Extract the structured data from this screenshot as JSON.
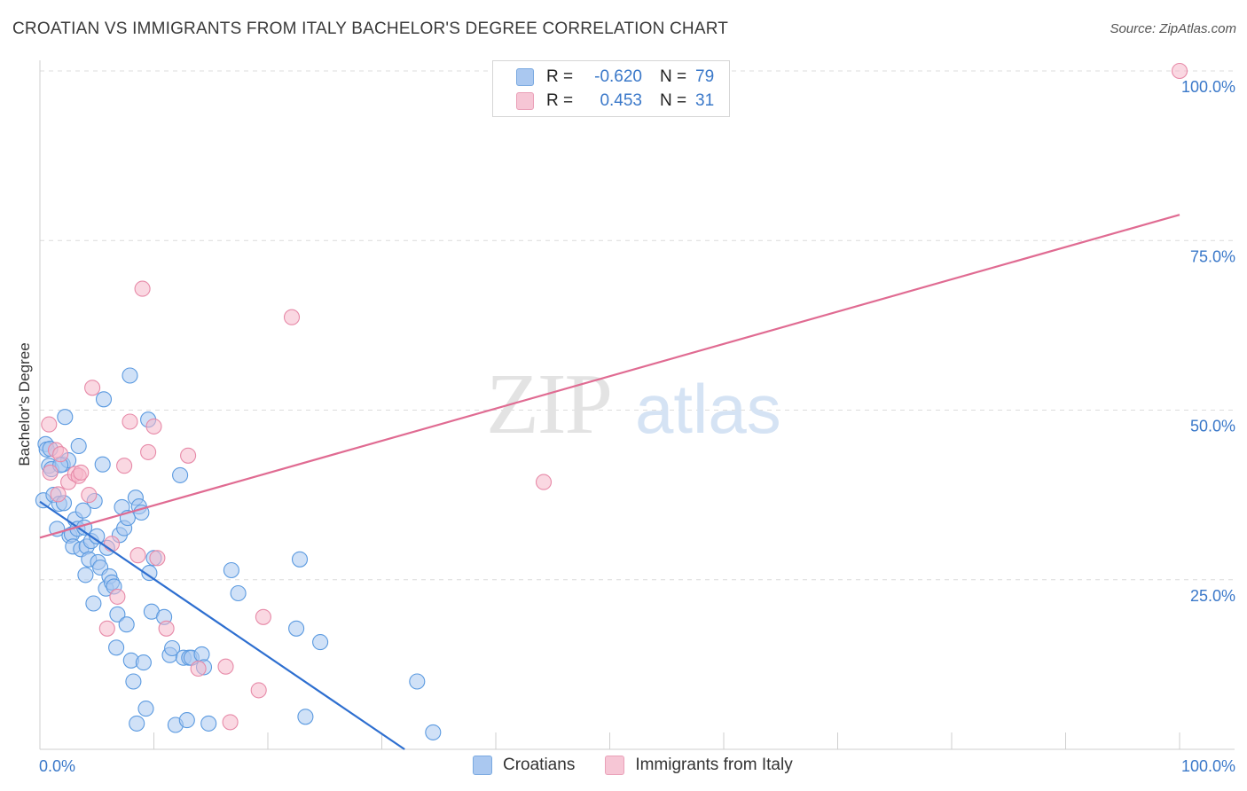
{
  "title": "CROATIAN VS IMMIGRANTS FROM ITALY BACHELOR'S DEGREE CORRELATION CHART",
  "source": "Source: ZipAtlas.com",
  "watermark": {
    "zip": "ZIP",
    "atlas": "atlas"
  },
  "legend": {
    "rows": [
      {
        "r_label": "R =",
        "r_value": "-0.620",
        "n_label": "N =",
        "n_value": "79",
        "color": "#aac8f0"
      },
      {
        "r_label": "R =",
        "r_value": "0.453",
        "n_label": "N =",
        "n_value": "31",
        "color": "#f6b8cb"
      }
    ]
  },
  "bottom_legend": [
    {
      "label": "Croatians",
      "color": "#aac8f0"
    },
    {
      "label": "Immigrants from Italy",
      "color": "#f6b8cb"
    }
  ],
  "chart_data": {
    "type": "scatter",
    "title": "CROATIAN VS IMMIGRANTS FROM ITALY BACHELOR'S DEGREE CORRELATION CHART",
    "xlabel": "",
    "ylabel": "Bachelor's Degree",
    "xlim": [
      0,
      100
    ],
    "ylim": [
      0,
      100
    ],
    "x_tick_labels": [
      "0.0%",
      "100.0%"
    ],
    "y_tick_labels": [
      "25.0%",
      "50.0%",
      "75.0%",
      "100.0%"
    ],
    "y_ticks": [
      25,
      50,
      75,
      100
    ],
    "series": [
      {
        "name": "Croatians",
        "color": "#5b9ae0",
        "fill": "#aac8f0",
        "trend": {
          "x0": 0,
          "y0": 36.5,
          "x1": 32,
          "y1": 0
        },
        "points": [
          [
            0.3,
            36.7
          ],
          [
            0.5,
            45.0
          ],
          [
            0.6,
            44.2
          ],
          [
            0.8,
            41.8
          ],
          [
            1.0,
            41.3
          ],
          [
            1.2,
            37.5
          ],
          [
            1.5,
            32.5
          ],
          [
            1.7,
            36.2
          ],
          [
            2.0,
            42.0
          ],
          [
            2.1,
            36.3
          ],
          [
            2.2,
            49.0
          ],
          [
            2.5,
            42.6
          ],
          [
            2.6,
            31.5
          ],
          [
            2.8,
            31.7
          ],
          [
            2.9,
            29.9
          ],
          [
            3.1,
            33.9
          ],
          [
            3.3,
            32.5
          ],
          [
            3.4,
            44.7
          ],
          [
            3.6,
            29.5
          ],
          [
            3.8,
            35.2
          ],
          [
            3.9,
            32.7
          ],
          [
            4.0,
            25.7
          ],
          [
            4.1,
            29.9
          ],
          [
            4.3,
            28.0
          ],
          [
            4.5,
            30.7
          ],
          [
            4.7,
            21.5
          ],
          [
            4.8,
            36.6
          ],
          [
            5.0,
            31.4
          ],
          [
            5.1,
            27.6
          ],
          [
            5.3,
            26.8
          ],
          [
            5.5,
            42.0
          ],
          [
            5.6,
            51.6
          ],
          [
            5.8,
            23.7
          ],
          [
            5.9,
            29.7
          ],
          [
            6.1,
            25.5
          ],
          [
            6.3,
            24.6
          ],
          [
            6.5,
            24.0
          ],
          [
            6.7,
            15.0
          ],
          [
            6.8,
            19.9
          ],
          [
            7.0,
            31.6
          ],
          [
            7.2,
            35.7
          ],
          [
            7.4,
            32.6
          ],
          [
            7.6,
            18.4
          ],
          [
            7.7,
            34.1
          ],
          [
            7.9,
            55.1
          ],
          [
            8.0,
            13.1
          ],
          [
            8.2,
            10.0
          ],
          [
            8.4,
            37.1
          ],
          [
            8.5,
            3.8
          ],
          [
            8.7,
            35.8
          ],
          [
            8.9,
            34.9
          ],
          [
            9.1,
            12.8
          ],
          [
            9.3,
            6.0
          ],
          [
            9.5,
            48.6
          ],
          [
            9.6,
            26.0
          ],
          [
            9.8,
            20.3
          ],
          [
            10.0,
            28.2
          ],
          [
            10.9,
            19.5
          ],
          [
            11.4,
            13.9
          ],
          [
            11.6,
            14.9
          ],
          [
            11.9,
            3.6
          ],
          [
            12.3,
            40.4
          ],
          [
            12.6,
            13.5
          ],
          [
            12.9,
            4.3
          ],
          [
            13.1,
            13.5
          ],
          [
            13.3,
            13.5
          ],
          [
            14.2,
            14.0
          ],
          [
            14.4,
            12.1
          ],
          [
            14.8,
            3.8
          ],
          [
            16.8,
            26.4
          ],
          [
            17.4,
            23.0
          ],
          [
            22.5,
            17.8
          ],
          [
            22.8,
            28.0
          ],
          [
            23.3,
            4.8
          ],
          [
            24.6,
            15.8
          ],
          [
            33.1,
            10.0
          ],
          [
            34.5,
            2.5
          ],
          [
            0.9,
            44.3
          ],
          [
            1.8,
            41.9
          ]
        ]
      },
      {
        "name": "Immigrants from Italy",
        "color": "#e78aa8",
        "fill": "#f6b8cb",
        "trend": {
          "x0": 0,
          "y0": 31.2,
          "x1": 100,
          "y1": 78.8
        },
        "points": [
          [
            0.8,
            47.9
          ],
          [
            0.9,
            40.8
          ],
          [
            1.4,
            44.1
          ],
          [
            1.6,
            37.6
          ],
          [
            1.8,
            43.5
          ],
          [
            2.5,
            39.4
          ],
          [
            3.1,
            40.6
          ],
          [
            3.4,
            40.3
          ],
          [
            3.6,
            40.8
          ],
          [
            4.3,
            37.5
          ],
          [
            4.6,
            53.3
          ],
          [
            5.9,
            17.8
          ],
          [
            6.3,
            30.3
          ],
          [
            6.8,
            22.5
          ],
          [
            7.4,
            41.8
          ],
          [
            7.9,
            48.3
          ],
          [
            8.6,
            28.6
          ],
          [
            9.0,
            67.9
          ],
          [
            9.5,
            43.8
          ],
          [
            10.0,
            47.6
          ],
          [
            10.3,
            28.2
          ],
          [
            11.1,
            17.8
          ],
          [
            13.0,
            43.3
          ],
          [
            13.9,
            11.9
          ],
          [
            16.3,
            12.2
          ],
          [
            16.7,
            4.0
          ],
          [
            19.2,
            8.7
          ],
          [
            19.6,
            19.5
          ],
          [
            22.1,
            63.7
          ],
          [
            44.2,
            39.4
          ],
          [
            100.0,
            100.0
          ]
        ]
      }
    ]
  }
}
